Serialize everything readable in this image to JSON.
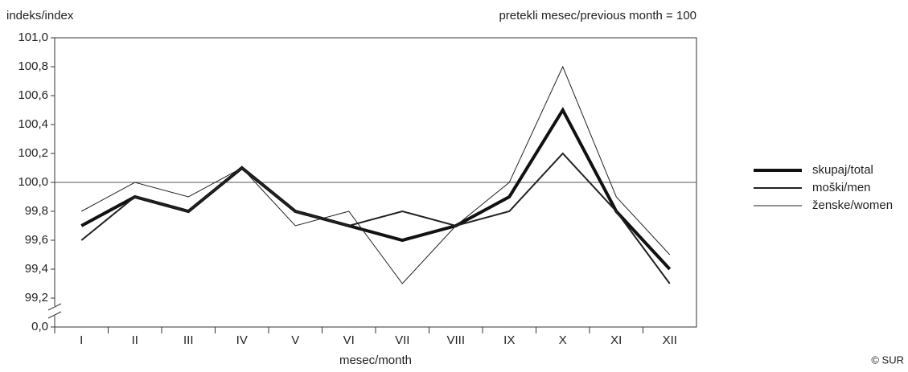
{
  "chart_data": {
    "type": "line",
    "y_axis_label": "indeks/index",
    "note": "pretekli mesec/previous month = 100",
    "x_axis_label": "mesec/month",
    "source": "© SUR",
    "categories": [
      "I",
      "II",
      "III",
      "IV",
      "V",
      "VI",
      "VII",
      "VIII",
      "IX",
      "X",
      "XI",
      "XII"
    ],
    "series": [
      {
        "name": "skupaj/total",
        "color": "#111111",
        "line_width": 4,
        "values": [
          99.7,
          99.9,
          99.8,
          100.1,
          99.8,
          99.7,
          99.6,
          99.7,
          99.9,
          100.5,
          99.8,
          99.4
        ]
      },
      {
        "name": "moški/men",
        "color": "#222222",
        "line_width": 2,
        "values": [
          99.6,
          99.9,
          99.8,
          100.1,
          99.8,
          99.7,
          99.8,
          99.7,
          99.8,
          100.2,
          99.8,
          99.3
        ]
      },
      {
        "name": "ženske/women",
        "color": "#222222",
        "line_width": 1,
        "values": [
          99.8,
          100.0,
          99.9,
          100.1,
          99.7,
          99.8,
          99.3,
          99.7,
          100.0,
          100.8,
          99.9,
          99.5
        ]
      }
    ],
    "ylim": [
      99.0,
      101.0
    ],
    "axis_break": true,
    "yticks": [
      {
        "value": 0,
        "label": "0,0"
      },
      {
        "value": 99.2,
        "label": "99,2"
      },
      {
        "value": 99.4,
        "label": "99,4"
      },
      {
        "value": 99.6,
        "label": "99,6"
      },
      {
        "value": 99.8,
        "label": "99,8"
      },
      {
        "value": 100,
        "label": "100,0"
      },
      {
        "value": 100.2,
        "label": "100,2"
      },
      {
        "value": 100.4,
        "label": "100,4"
      },
      {
        "value": 100.6,
        "label": "100,6"
      },
      {
        "value": 100.8,
        "label": "100,8"
      },
      {
        "value": 101,
        "label": "101,0"
      }
    ],
    "reference_line": 100,
    "grid": false,
    "legend": "right"
  }
}
